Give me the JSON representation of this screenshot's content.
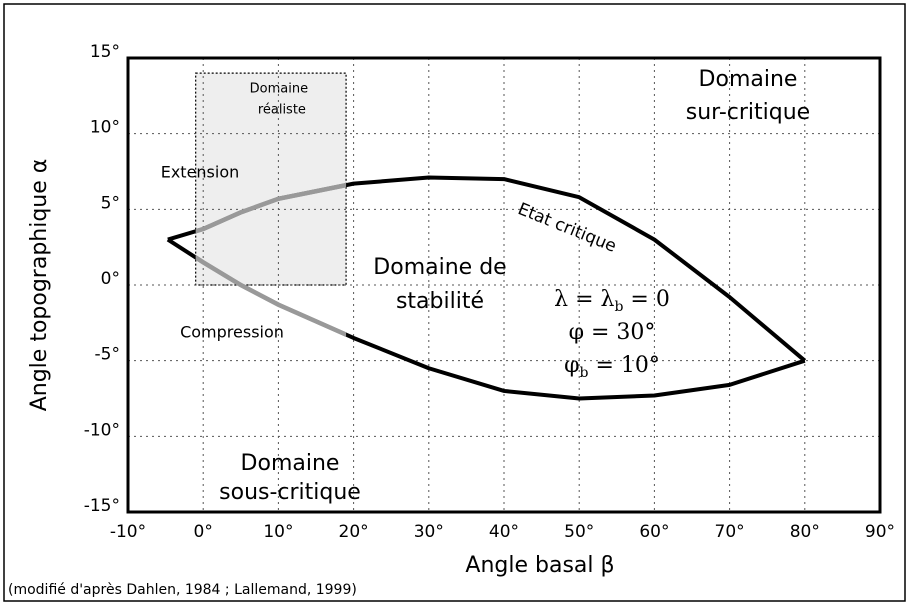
{
  "chart_data": {
    "type": "line",
    "x_label": "Angle basal β",
    "y_label": "Angle topographique α",
    "source": "(modifié d'après Dahlen, 1984 ; Lallemand, 1999)",
    "xlim": [
      -10,
      90
    ],
    "ylim": [
      -15,
      15
    ],
    "xticks": [
      {
        "value": -10,
        "label": "-10°"
      },
      {
        "value": 0,
        "label": "0°"
      },
      {
        "value": 10,
        "label": "10°"
      },
      {
        "value": 20,
        "label": "20°"
      },
      {
        "value": 30,
        "label": "30°"
      },
      {
        "value": 40,
        "label": "40°"
      },
      {
        "value": 50,
        "label": "50°"
      },
      {
        "value": 60,
        "label": "60°"
      },
      {
        "value": 70,
        "label": "70°"
      },
      {
        "value": 80,
        "label": "80°"
      },
      {
        "value": 90,
        "label": "90°"
      }
    ],
    "yticks": [
      {
        "value": -15,
        "label": "-15°"
      },
      {
        "value": -10,
        "label": "-10°"
      },
      {
        "value": -5,
        "label": "-5°"
      },
      {
        "value": 0,
        "label": "0°"
      },
      {
        "value": 5,
        "label": "5°"
      },
      {
        "value": 10,
        "label": "10°"
      },
      {
        "value": 15,
        "label": "15°"
      }
    ],
    "grid": true,
    "highlight_color": "#999999",
    "series": [
      {
        "name": "Etat critique",
        "color": "#000000",
        "x": [
          -4.7,
          0,
          5,
          10,
          20,
          30,
          40,
          50,
          60,
          70,
          80
        ],
        "values": [
          3,
          3.7,
          4.8,
          5.7,
          6.7,
          7.1,
          7,
          5.8,
          3,
          -0.8,
          -5
        ]
      },
      {
        "color": "#000000",
        "x": [
          -4.7,
          0,
          5,
          10,
          20,
          30,
          40,
          50,
          60,
          70,
          80
        ],
        "values": [
          3,
          1.5,
          0,
          -1.3,
          -3.5,
          -5.5,
          -7,
          -7.5,
          -7.3,
          -6.6,
          -5
        ]
      }
    ],
    "realistic_domain": {
      "label": [
        "Domaine",
        "réaliste"
      ],
      "xlim": [
        -1,
        19
      ],
      "ylim": [
        0,
        14
      ],
      "color": "#eeeeee"
    },
    "annotations": {
      "super_critical": [
        "Domaine",
        "sur-critique"
      ],
      "extension": [
        "Extension"
      ],
      "compression": [
        "Compression"
      ],
      "stability": [
        "Domaine de",
        "stabilité"
      ],
      "sub_critical": [
        "Domaine",
        "sous-critique"
      ]
    },
    "parameters": [
      [
        "λ = λ",
        "b",
        " = 0"
      ],
      [
        "φ = 30°"
      ],
      [
        "φ",
        "b",
        " = 10°"
      ]
    ]
  }
}
